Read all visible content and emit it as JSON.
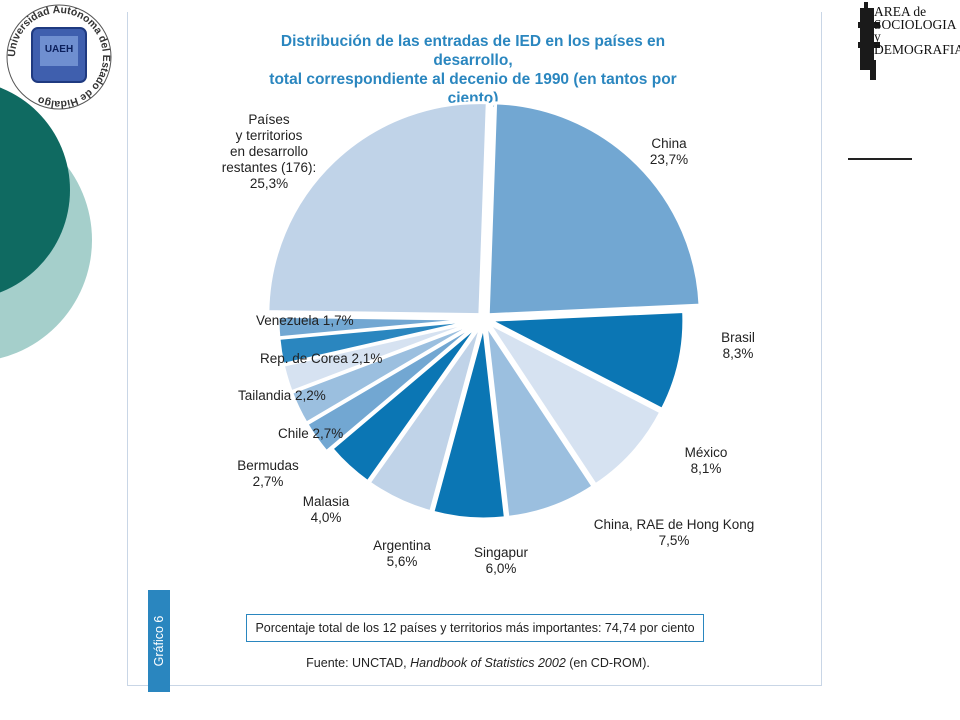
{
  "title": {
    "line1": "Distribución de las entradas de IED en los países en desarrollo,",
    "line2": "total correspondiente al decenio de 1990 (en tantos por ciento)"
  },
  "total_note": "Porcentaje total de los 12 países y territorios más importantes: 74,74 por ciento",
  "source": {
    "prefix": "Fuente: UNCTAD, ",
    "italic": "Handbook of Statistics 2002",
    "suffix": " (en CD-ROM)."
  },
  "side_tab": "Gráfico 6",
  "logo_right": {
    "line1": "AREA de",
    "line2": "SOCIOLOGIA",
    "line3": "y DEMOGRAFIA"
  },
  "logo_left": {
    "ring_text": "Universidad Autónoma del Estado de Hidalgo",
    "center": "UAEH"
  },
  "colors": {
    "light_blue": "#c0d3e8",
    "mid_blue": "#72a7d2",
    "dark_blue": "#0b76b4",
    "pale_blue": "#d6e2f1",
    "soft_blue": "#9bbfdf",
    "title_blue": "#2a86bf",
    "teal_dark": "#0f6a61",
    "teal_light": "#a5cfcb"
  },
  "chart_data": {
    "type": "pie",
    "title": "Distribución de las entradas de IED en los países en desarrollo, total correspondiente al decenio de 1990 (en tantos por ciento)",
    "slices": [
      {
        "lines": [
          "China",
          "23,7%"
        ],
        "value": 23.7,
        "color": "#72a7d2"
      },
      {
        "lines": [
          "Brasil",
          "8,3%"
        ],
        "value": 8.3,
        "color": "#0b76b4"
      },
      {
        "lines": [
          "México",
          "8,1%"
        ],
        "value": 8.1,
        "color": "#d6e2f1"
      },
      {
        "lines": [
          "China, RAE de Hong Kong",
          "7,5%"
        ],
        "value": 7.5,
        "color": "#9bbfdf"
      },
      {
        "lines": [
          "Singapur",
          "6,0%"
        ],
        "value": 6.0,
        "color": "#0b76b4"
      },
      {
        "lines": [
          "Argentina",
          "5,6%"
        ],
        "value": 5.6,
        "color": "#c0d3e8"
      },
      {
        "lines": [
          "Malasia",
          "4,0%"
        ],
        "value": 4.0,
        "color": "#0b76b4"
      },
      {
        "lines": [
          "Bermudas",
          "2,7%"
        ],
        "value": 2.7,
        "color": "#72a7d2"
      },
      {
        "lines": [
          "Chile 2,7%"
        ],
        "value": 2.7,
        "color": "#9bbfdf"
      },
      {
        "lines": [
          "Tailandia 2,2%"
        ],
        "value": 2.2,
        "color": "#d6e2f1"
      },
      {
        "lines": [
          "Rep. de Corea 2,1%"
        ],
        "value": 2.1,
        "color": "#2a86bf"
      },
      {
        "lines": [
          "Venezuela 1,7%"
        ],
        "value": 1.7,
        "color": "#72a7d2"
      },
      {
        "lines": [
          "Países",
          "y territorios",
          "en desarrollo",
          "restantes (176):",
          "25,3%"
        ],
        "value": 25.3,
        "color": "#c0d3e8"
      }
    ]
  }
}
